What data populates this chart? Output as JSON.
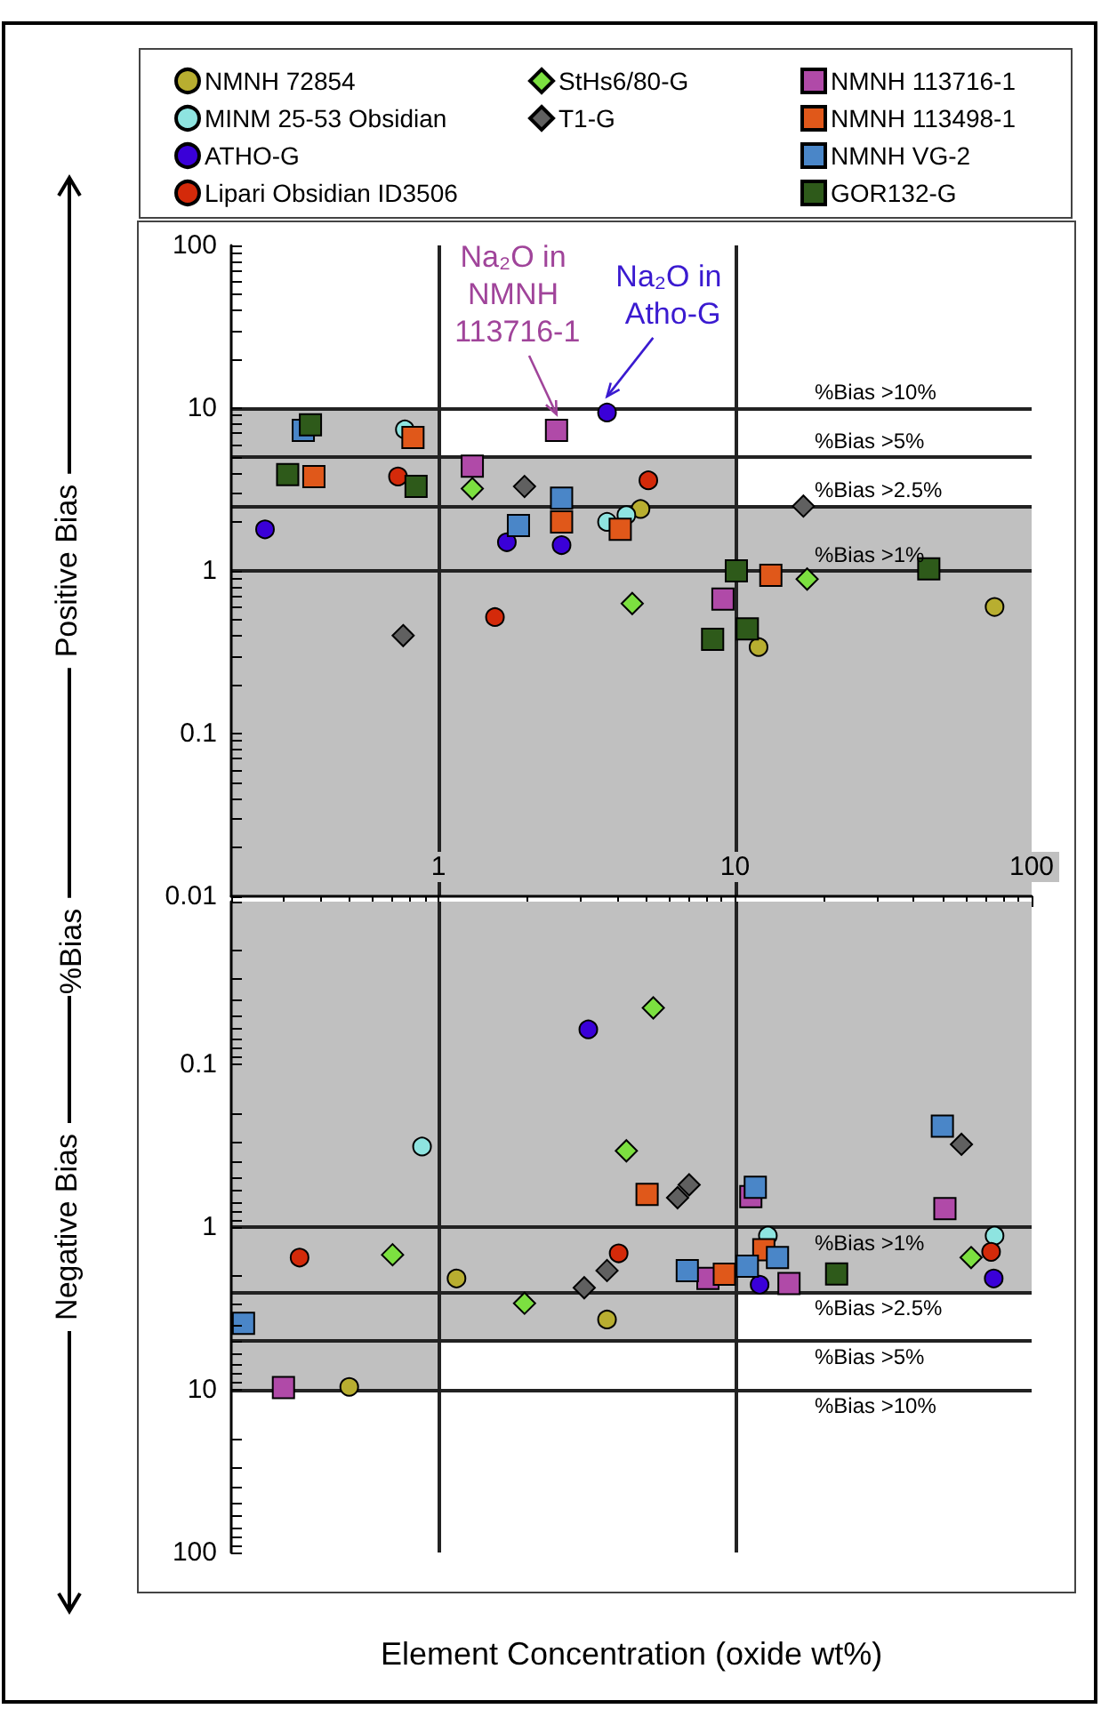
{
  "chart_data": [
    {
      "type": "scatter",
      "ylabel": "Positive Bias",
      "log": "xy",
      "legend": "top",
      "xlim": [
        0.2,
        100
      ],
      "ylim": [
        0.01,
        100
      ],
      "xticks": [
        {
          "value": 0.2,
          "label": null
        },
        {
          "value": 0.3,
          "label": null
        },
        {
          "value": 0.4,
          "label": null
        },
        {
          "value": 0.5,
          "label": null
        },
        {
          "value": 0.6,
          "label": null
        },
        {
          "value": 0.7,
          "label": null
        },
        {
          "value": 0.8,
          "label": null
        },
        {
          "value": 0.9,
          "label": null
        },
        1,
        {
          "value": 2,
          "label": null
        },
        {
          "value": 3,
          "label": null
        },
        {
          "value": 4,
          "label": null
        },
        {
          "value": 5,
          "label": null
        },
        {
          "value": 6,
          "label": null
        },
        {
          "value": 7,
          "label": null
        },
        {
          "value": 8,
          "label": null
        },
        {
          "value": 9,
          "label": null
        },
        10,
        {
          "value": 20,
          "label": null
        },
        {
          "value": 30,
          "label": null
        },
        {
          "value": 40,
          "label": null
        },
        {
          "value": 50,
          "label": null
        },
        {
          "value": 60,
          "label": null
        },
        {
          "value": 70,
          "label": null
        },
        {
          "value": 80,
          "label": null
        },
        {
          "value": 90,
          "label": null
        },
        100
      ],
      "yticks": [
        0.01,
        {
          "value": 0.02,
          "label": null
        },
        {
          "value": 0.03,
          "label": null
        },
        {
          "value": 0.04,
          "label": null
        },
        {
          "value": 0.05,
          "label": null
        },
        {
          "value": 0.06,
          "label": null
        },
        {
          "value": 0.07,
          "label": null
        },
        {
          "value": 0.08,
          "label": null
        },
        {
          "value": 0.09,
          "label": null
        },
        0.1,
        {
          "value": 0.2,
          "label": null
        },
        {
          "value": 0.3,
          "label": null
        },
        {
          "value": 0.4,
          "label": null
        },
        {
          "value": 0.5,
          "label": null
        },
        {
          "value": 0.6,
          "label": null
        },
        {
          "value": 0.7,
          "label": null
        },
        {
          "value": 0.8,
          "label": null
        },
        {
          "value": 0.9,
          "label": null
        },
        1,
        {
          "value": 2,
          "label": null
        },
        {
          "value": 3,
          "label": null
        },
        {
          "value": 4,
          "label": null
        },
        {
          "value": 5,
          "label": null
        },
        {
          "value": 6,
          "label": null
        },
        {
          "value": 7,
          "label": null
        },
        {
          "value": 8,
          "label": null
        },
        {
          "value": 9,
          "label": null
        },
        10,
        {
          "value": 20,
          "label": null
        },
        {
          "value": 30,
          "label": null
        },
        {
          "value": 40,
          "label": null
        },
        {
          "value": 50,
          "label": null
        },
        {
          "value": 60,
          "label": null
        },
        {
          "value": 70,
          "label": null
        },
        {
          "value": 80,
          "label": null
        },
        {
          "value": 90,
          "label": null
        },
        100
      ],
      "ref_lines": [
        {
          "axis": "y",
          "value": 10,
          "label": "%Bias >10%"
        },
        {
          "axis": "y",
          "value": 5,
          "label": "%Bias >5%"
        },
        {
          "axis": "y",
          "value": 2.5,
          "label": "%Bias >2.5%"
        },
        {
          "axis": "y",
          "value": 1,
          "label": "%Bias >1%"
        },
        {
          "axis": "x",
          "value": 1
        },
        {
          "axis": "x",
          "value": 10
        }
      ],
      "annotations": [
        "%Bias",
        {
          "text": "Na₂O in NMNH 113716-1",
          "x": 2.5,
          "y": 7.3
        },
        {
          "text": "Na₂O in Atho-G",
          "x": 3.7,
          "y": 9.4
        }
      ],
      "series": [
        {
          "type": "area",
          "color": "#c0c0c0",
          "x": [
            0.2,
            1,
            1,
            10,
            10,
            100
          ],
          "values": [
            10,
            10,
            5,
            5,
            2.5,
            2.5
          ]
        },
        {
          "name": "NMNH 72854",
          "color": "#b8ae30",
          "marker": "circle",
          "x": [
            4.8,
            75,
            12
          ],
          "values": [
            2.4,
            0.6,
            0.34
          ]
        },
        {
          "name": "MINM 25-53 Obsidian",
          "color": "#8ee4e0",
          "marker": "circle",
          "x": [
            0.77,
            3.7,
            4.3
          ],
          "values": [
            7.4,
            2.0,
            2.2
          ]
        },
        {
          "name": "ATHO-G",
          "color": "#3a00d8",
          "marker": "circle",
          "x": [
            0.26,
            3.7,
            1.7,
            2.6
          ],
          "values": [
            1.8,
            9.4,
            1.5,
            1.44
          ]
        },
        {
          "name": "Lipari Obsidian ID3506",
          "color": "#d42a0a",
          "marker": "circle",
          "x": [
            0.73,
            5.1,
            1.55
          ],
          "values": [
            3.8,
            3.6,
            0.52
          ]
        },
        {
          "name": "StHs6/80-G",
          "color": "#7ce040",
          "marker": "diamond",
          "x": [
            1.3,
            4.5,
            17.5
          ],
          "values": [
            3.2,
            0.63,
            0.89
          ]
        },
        {
          "name": "T1-G",
          "color": "#606060",
          "marker": "diamond",
          "x": [
            1.95,
            17,
            0.76
          ],
          "values": [
            3.3,
            2.5,
            0.4
          ]
        },
        {
          "name": "NMNH 113716-1",
          "color": "#b04aa8",
          "marker": "square",
          "x": [
            1.3,
            2.5,
            9.1
          ],
          "values": [
            4.4,
            7.3,
            0.67
          ]
        },
        {
          "name": "NMNH 113498-1",
          "color": "#e0581a",
          "marker": "square",
          "x": [
            0.82,
            0.38,
            2.6,
            4.1,
            13.2
          ],
          "values": [
            6.6,
            3.8,
            2.0,
            1.8,
            0.94
          ]
        },
        {
          "name": "NMNH VG-2",
          "color": "#4a86c8",
          "marker": "square",
          "x": [
            0.35,
            2.6,
            1.86
          ],
          "values": [
            7.3,
            2.8,
            1.9
          ]
        },
        {
          "name": "GOR132-G",
          "color": "#2e5a1a",
          "marker": "square",
          "x": [
            0.37,
            0.31,
            0.84,
            10.1,
            45,
            8.4,
            11
          ],
          "values": [
            7.9,
            3.9,
            3.3,
            1.0,
            1.03,
            0.38,
            0.44
          ]
        }
      ]
    },
    {
      "type": "scatter",
      "ylabel": "Negative Bias",
      "xlabel": "Element Concentration (oxide wt%)",
      "log": "xy",
      "tick_labels": "y",
      "xlim": [
        0.2,
        100
      ],
      "ylim": [
        100,
        0.01
      ],
      "yticks": [
        {
          "value": 0.01,
          "label": null
        },
        {
          "value": 0.02,
          "label": null
        },
        {
          "value": 0.03,
          "label": null
        },
        {
          "value": 0.04,
          "label": null
        },
        {
          "value": 0.05,
          "label": null
        },
        {
          "value": 0.06,
          "label": null
        },
        {
          "value": 0.07,
          "label": null
        },
        {
          "value": 0.08,
          "label": null
        },
        {
          "value": 0.09,
          "label": null
        },
        0.1,
        {
          "value": 0.2,
          "label": null
        },
        {
          "value": 0.3,
          "label": null
        },
        {
          "value": 0.4,
          "label": null
        },
        {
          "value": 0.5,
          "label": null
        },
        {
          "value": 0.6,
          "label": null
        },
        {
          "value": 0.7,
          "label": null
        },
        {
          "value": 0.8,
          "label": null
        },
        {
          "value": 0.9,
          "label": null
        },
        1,
        {
          "value": 2,
          "label": null
        },
        {
          "value": 3,
          "label": null
        },
        {
          "value": 4,
          "label": null
        },
        {
          "value": 5,
          "label": null
        },
        {
          "value": 6,
          "label": null
        },
        {
          "value": 7,
          "label": null
        },
        {
          "value": 8,
          "label": null
        },
        {
          "value": 9,
          "label": null
        },
        10,
        {
          "value": 20,
          "label": null
        },
        {
          "value": 30,
          "label": null
        },
        {
          "value": 40,
          "label": null
        },
        {
          "value": 50,
          "label": null
        },
        {
          "value": 60,
          "label": null
        },
        {
          "value": 70,
          "label": null
        },
        {
          "value": 80,
          "label": null
        },
        {
          "value": 90,
          "label": null
        },
        100
      ],
      "ref_lines": [
        {
          "axis": "y",
          "value": 1,
          "label": "%Bias >1%"
        },
        {
          "axis": "y",
          "value": 2.5,
          "label": "%Bias >2.5%"
        },
        {
          "axis": "y",
          "value": 5,
          "label": "%Bias >5%"
        },
        {
          "axis": "y",
          "value": 10,
          "label": "%Bias >10%"
        },
        {
          "axis": "x",
          "value": 1
        },
        {
          "axis": "x",
          "value": 10
        }
      ],
      "series": [
        {
          "type": "area",
          "color": "#c0c0c0",
          "x": [
            0.2,
            1,
            1,
            10,
            10,
            100
          ],
          "values": [
            10,
            10,
            5,
            5,
            2.5,
            2.5
          ]
        },
        {
          "color": "#b8ae30",
          "marker": "circle",
          "x": [
            1.15,
            3.7,
            0.5
          ],
          "values": [
            2.07,
            3.7,
            9.6
          ]
        },
        {
          "color": "#8ee4e0",
          "marker": "circle",
          "x": [
            0.88,
            12.9,
            75
          ],
          "values": [
            0.32,
            1.13,
            1.13
          ]
        },
        {
          "color": "#3a00d8",
          "marker": "circle",
          "x": [
            3.2,
            12.1,
            74.5
          ],
          "values": [
            0.061,
            2.26,
            2.07
          ]
        },
        {
          "color": "#d42a0a",
          "marker": "circle",
          "x": [
            0.34,
            4.05,
            73
          ],
          "values": [
            1.54,
            1.45,
            1.42
          ]
        },
        {
          "color": "#7ce040",
          "marker": "diamond",
          "x": [
            5.3,
            4.3,
            0.7,
            62.5,
            1.95
          ],
          "values": [
            0.045,
            0.34,
            1.48,
            1.54,
            2.94
          ]
        },
        {
          "color": "#606060",
          "marker": "diamond",
          "x": [
            7,
            6.4,
            58,
            3.7,
            3.1
          ],
          "values": [
            0.55,
            0.66,
            0.31,
            1.85,
            2.36
          ]
        },
        {
          "color": "#b04aa8",
          "marker": "square",
          "x": [
            11.3,
            51,
            8.1,
            15.2,
            0.3
          ],
          "values": [
            0.65,
            0.77,
            2.07,
            2.22,
            9.7
          ]
        },
        {
          "color": "#e0581a",
          "marker": "square",
          "x": [
            5.05,
            9.2,
            12.5
          ],
          "values": [
            0.63,
            1.95,
            1.38
          ]
        },
        {
          "color": "#4a86c8",
          "marker": "square",
          "x": [
            50,
            11.7,
            6.9,
            11,
            13.9,
            0.22
          ],
          "values": [
            0.24,
            0.57,
            1.85,
            1.74,
            1.54,
            3.9
          ]
        },
        {
          "color": "#2e5a1a",
          "marker": "square",
          "x": [
            22
          ],
          "values": [
            1.94
          ]
        }
      ]
    }
  ]
}
